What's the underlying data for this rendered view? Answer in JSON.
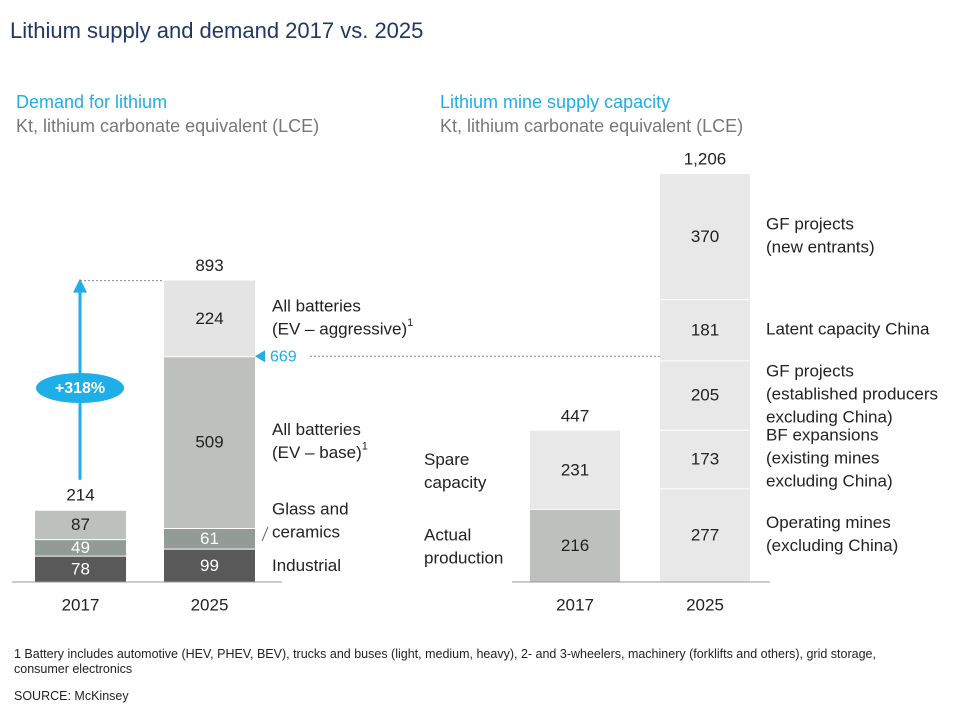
{
  "title": "Lithium supply and demand 2017 vs. 2025",
  "demand_heading": "Demand for lithium",
  "demand_unit": "Kt, lithium carbonate equivalent (LCE)",
  "supply_heading": "Lithium mine supply capacity",
  "supply_unit": "Kt, lithium carbonate equivalent (LCE)",
  "footnote": "1 Battery includes automotive (HEV, PHEV, BEV), trucks and buses (light, medium, heavy), 2- and 3-wheelers, machinery (forklifts and others), grid storage, consumer electronics",
  "source": "SOURCE: McKinsey",
  "colors": {
    "industrial": "#595959",
    "glass": "#929b96",
    "base": "#bcc1bd",
    "aggressive": "#e4e4e4",
    "light_block": "#e8e8e8",
    "accent": "#1eaee8",
    "text": "#222222"
  },
  "chart_data": [
    {
      "type": "bar",
      "stacked": true,
      "title": "Demand for lithium",
      "ylabel": "Kt, lithium carbonate equivalent (LCE)",
      "categories": [
        "2017",
        "2025"
      ],
      "series": [
        {
          "name": "Industrial",
          "values": [
            78,
            99
          ]
        },
        {
          "name": "Glass and ceramics",
          "values": [
            49,
            61
          ]
        },
        {
          "name": "All batteries (EV – base)",
          "values": [
            87,
            509
          ]
        },
        {
          "name": "All batteries (EV – aggressive)",
          "values": [
            null,
            224
          ]
        }
      ],
      "totals": [
        "214",
        "893"
      ],
      "segment_labels": [
        [
          "78",
          "49",
          "87"
        ],
        [
          "99",
          "61",
          "509",
          "224"
        ]
      ],
      "legend_labels": [
        {
          "lines": [
            "Industrial"
          ],
          "sup": ""
        },
        {
          "lines": [
            "Glass and",
            "ceramics"
          ],
          "sup": ""
        },
        {
          "lines": [
            "All batteries",
            "(EV – base)"
          ],
          "sup": "1"
        },
        {
          "lines": [
            "All batteries",
            "(EV – aggressive)"
          ],
          "sup": "1"
        }
      ],
      "annotations": {
        "growth": "+318%",
        "base_case_total": 669,
        "base_case_label": "669"
      }
    },
    {
      "type": "bar",
      "stacked": true,
      "title": "Lithium mine supply capacity",
      "ylabel": "Kt, lithium carbonate equivalent (LCE)",
      "categories": [
        "2017",
        "2025"
      ],
      "left_labels": [
        {
          "lines": [
            "Actual",
            "production"
          ]
        },
        {
          "lines": [
            "Spare",
            "capacity"
          ]
        }
      ],
      "series_2017": [
        {
          "name": "Actual production",
          "value": 216,
          "label": "216"
        },
        {
          "name": "Spare capacity",
          "value": 231,
          "label": "231"
        }
      ],
      "series_2025": [
        {
          "name": "Operating mines (excluding China)",
          "value": 277,
          "label": "277"
        },
        {
          "name": "BF expansions (existing mines excluding China)",
          "value": 173,
          "label": "173"
        },
        {
          "name": "GF projects (established producers excluding China)",
          "value": 205,
          "label": "205"
        },
        {
          "name": "Latent capacity China",
          "value": 181,
          "label": "181"
        },
        {
          "name": "GF projects (new entrants)",
          "value": 370,
          "label": "370"
        }
      ],
      "right_labels": [
        {
          "lines": [
            "Operating mines",
            "(excluding China)"
          ]
        },
        {
          "lines": [
            "BF expansions",
            "(existing mines",
            "excluding China)"
          ]
        },
        {
          "lines": [
            "GF projects",
            "(established producers",
            "excluding China)"
          ]
        },
        {
          "lines": [
            "Latent capacity China"
          ]
        },
        {
          "lines": [
            "GF projects",
            "(new entrants)"
          ]
        }
      ],
      "totals": [
        "447",
        "1,206"
      ]
    }
  ]
}
